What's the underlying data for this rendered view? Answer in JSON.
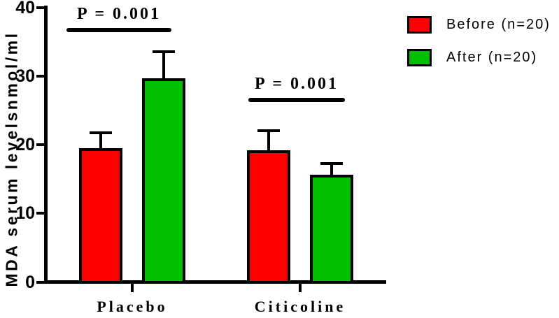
{
  "chart_data": {
    "type": "bar",
    "title": "",
    "xlabel": "",
    "ylabel": "MDA serum levelsnmol/ml",
    "ylim": [
      0,
      40
    ],
    "yticks": [
      "0",
      "10",
      "20",
      "30",
      "40"
    ],
    "grid": false,
    "legend_position": "top-right",
    "categories": [
      "Placebo",
      "Citicoline"
    ],
    "series": [
      {
        "name": "Before (n=20)",
        "color": "#FF0000",
        "values": [
          19.5,
          19.2
        ],
        "errors_plus": [
          2.0,
          2.6
        ]
      },
      {
        "name": "After (n=20)",
        "color": "#00BE00",
        "values": [
          29.7,
          15.6
        ],
        "errors_plus": [
          3.6,
          1.4
        ]
      }
    ],
    "annotations": [
      {
        "text": "P = 0.001",
        "category": "Placebo",
        "line_level": 36.7
      },
      {
        "text": "P = 0.001",
        "category": "Citicoline",
        "line_level": 26.5
      }
    ]
  }
}
